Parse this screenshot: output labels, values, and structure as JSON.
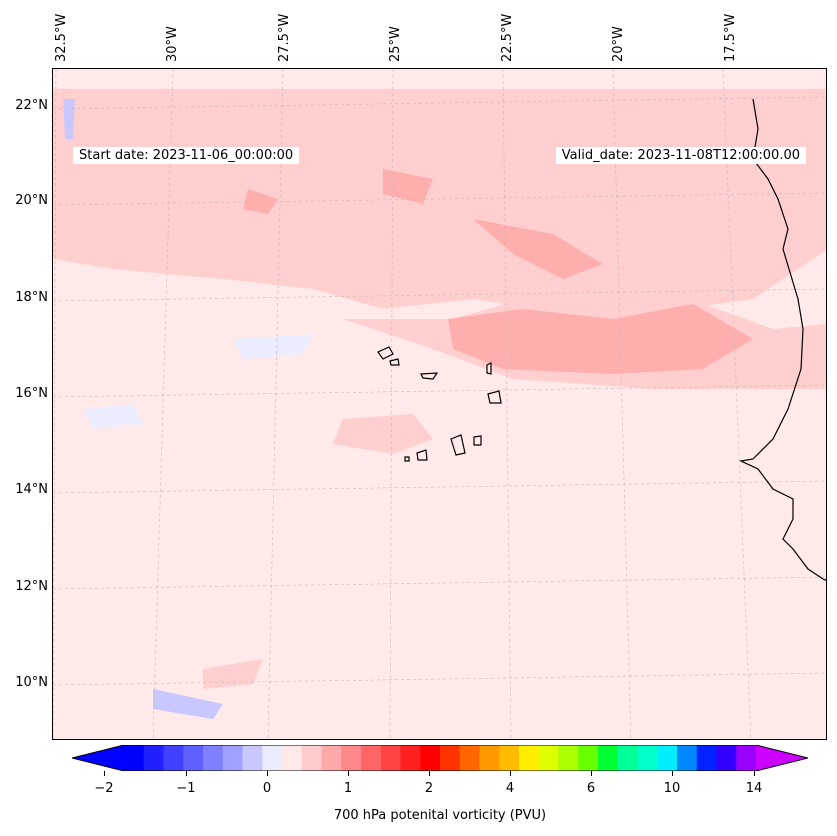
{
  "map": {
    "start_date_text": "Start date: 2023-11-06_00:00:00",
    "valid_date_text": "Valid_date: 2023-11-08T12:00:00.00",
    "longitude_labels": [
      "32.5°W",
      "30°W",
      "27.5°W",
      "25°W",
      "22.5°W",
      "20°W",
      "17.5°W"
    ],
    "latitude_labels": [
      "22°N",
      "20°N",
      "18°N",
      "16°N",
      "14°N",
      "12°N",
      "10°N"
    ],
    "land_feature": "coastline and Cape Verde islands outlined in black",
    "background_color": "#ffe9e9"
  },
  "colorbar": {
    "tick_labels": [
      "−2",
      "−1",
      "0",
      "1",
      "2",
      "4",
      "6",
      "10",
      "14"
    ],
    "label": "700 hPa potenital vorticity (PVU)",
    "colors": [
      "#0000ff",
      "#2020ff",
      "#4040ff",
      "#6060ff",
      "#8080ff",
      "#a0a0ff",
      "#c8c8ff",
      "#ececff",
      "#ffe8e8",
      "#ffcccc",
      "#ffaaaa",
      "#ff8888",
      "#ff6666",
      "#ff4444",
      "#ff2020",
      "#ff0000",
      "#ff3300",
      "#ff6600",
      "#ff9900",
      "#ffbb00",
      "#ffee00",
      "#ddff00",
      "#aaff00",
      "#66ff00",
      "#00ff33",
      "#00ff99",
      "#00ffcc",
      "#00eeff",
      "#0088ff",
      "#0022ff",
      "#3300ff",
      "#9900ff"
    ],
    "extend_low_color": "#0000ff",
    "extend_high_color": "#cc00ff"
  }
}
